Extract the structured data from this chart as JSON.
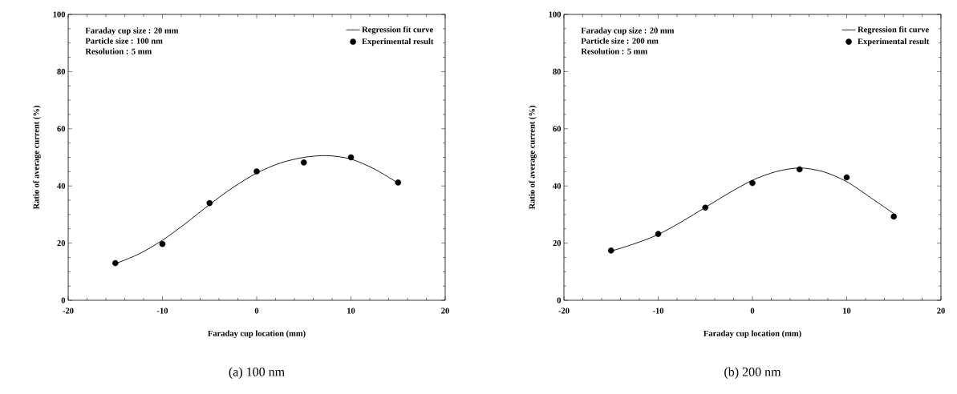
{
  "chart_data": [
    {
      "type": "scatter",
      "title": "(a)  100 nm",
      "xlabel": "Faraday cup location (mm)",
      "ylabel": "Ratio of average current (%)",
      "xlim": [
        -20,
        20
      ],
      "xticks": [
        -20,
        -10,
        0,
        10,
        20
      ],
      "ylim": [
        0,
        100
      ],
      "yticks": [
        0,
        20,
        40,
        60,
        80,
        100
      ],
      "legend": "top right",
      "annotations": [
        "Faraday cup size : 20 mm",
        "Particle size : 100 nm",
        "Resolution : 5 mm"
      ],
      "series": [
        {
          "name": "Regression fit curve",
          "type": "line",
          "marker": "none",
          "color": "#000000",
          "x": [
            -15,
            -12.5,
            -10,
            -7.5,
            -5,
            -2.5,
            0,
            2.5,
            5,
            7.5,
            10,
            12.5,
            15
          ],
          "values": [
            12.8,
            16.2,
            21,
            27,
            33.5,
            39.5,
            44.5,
            48,
            50,
            50.6,
            49.4,
            45.9,
            41
          ]
        },
        {
          "name": "Experimental result",
          "marker": "circle",
          "color": "#000000",
          "x": [
            -15,
            -10,
            -5,
            0,
            5,
            10,
            15
          ],
          "values": [
            13.0,
            19.7,
            34.0,
            45.1,
            48.2,
            50.0,
            41.2
          ]
        }
      ]
    },
    {
      "type": "scatter",
      "title": "(b)  200 nm",
      "xlabel": "Faraday cup location (mm)",
      "ylabel": "Ratio of average current (%)",
      "xlim": [
        -20,
        20
      ],
      "xticks": [
        -20,
        -10,
        0,
        10,
        20
      ],
      "ylim": [
        0,
        100
      ],
      "yticks": [
        0,
        20,
        40,
        60,
        80,
        100
      ],
      "legend": "top right",
      "annotations": [
        "Faraday cup size : 20 mm",
        "Particle size : 200 nm",
        "Resolution : 5 mm"
      ],
      "series": [
        {
          "name": "Regression fit curve",
          "type": "line",
          "marker": "none",
          "color": "#000000",
          "x": [
            -15,
            -12.5,
            -10,
            -7.5,
            -5,
            -2.5,
            0,
            2.5,
            5,
            7.5,
            10,
            12.5,
            15
          ],
          "values": [
            17.2,
            19.8,
            23,
            27.5,
            32.5,
            37.5,
            42,
            45,
            46.3,
            45,
            41.5,
            36,
            30.3
          ]
        },
        {
          "name": "Experimental result",
          "marker": "circle",
          "color": "#000000",
          "x": [
            -15,
            -10,
            -5,
            0,
            5,
            10,
            15
          ],
          "values": [
            17.4,
            23.2,
            32.4,
            41.0,
            45.8,
            43.0,
            29.3
          ]
        }
      ]
    }
  ]
}
